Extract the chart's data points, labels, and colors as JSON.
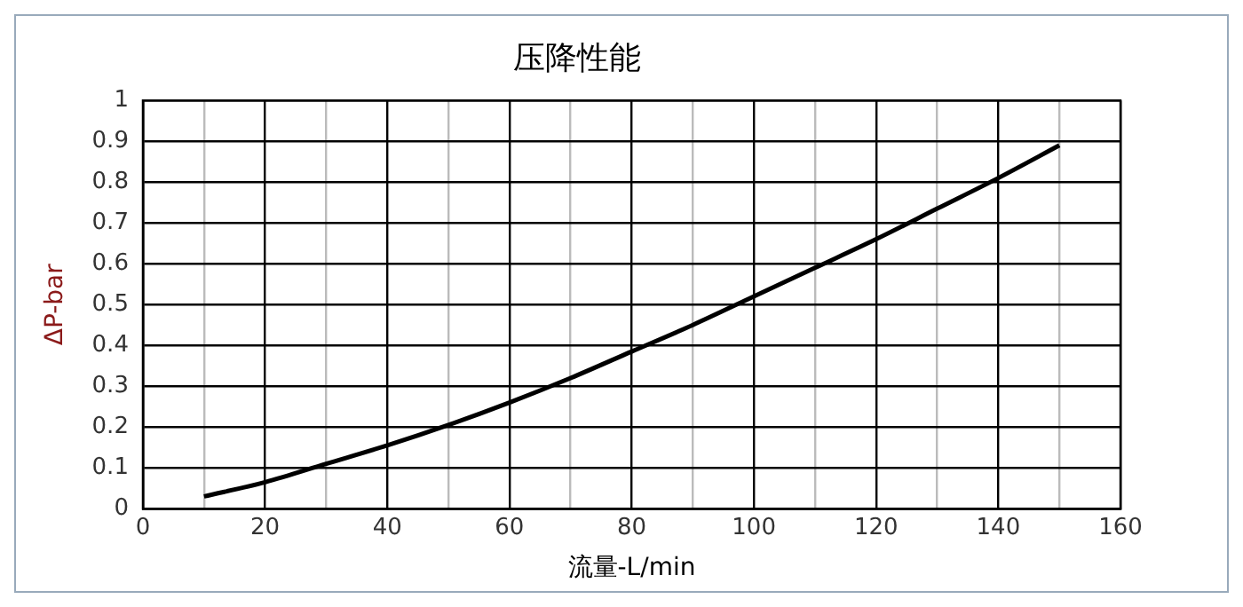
{
  "chart_data": {
    "type": "line",
    "title": "压降性能",
    "xlabel": "流量-L/min",
    "ylabel": "ΔP-bar",
    "x": [
      10,
      20,
      30,
      40,
      50,
      60,
      70,
      80,
      90,
      100,
      110,
      120,
      130,
      140,
      150
    ],
    "series": [
      {
        "color": "#000000",
        "values": [
          0.03,
          0.065,
          0.11,
          0.155,
          0.205,
          0.26,
          0.32,
          0.385,
          0.45,
          0.52,
          0.59,
          0.66,
          0.735,
          0.81,
          0.89
        ]
      }
    ],
    "xlim": [
      0,
      160
    ],
    "xticks": [
      0,
      {
        "value": 10,
        "label": null
      },
      20,
      {
        "value": 30,
        "label": null
      },
      40,
      {
        "value": 50,
        "label": null
      },
      60,
      {
        "value": 70,
        "label": null
      },
      80,
      {
        "value": 90,
        "label": null
      },
      100,
      {
        "value": 110,
        "label": null
      },
      120,
      {
        "value": 130,
        "label": null
      },
      140,
      {
        "value": 150,
        "label": null
      },
      160
    ],
    "ylim": [
      0,
      1
    ],
    "yticks": [
      0,
      0.1,
      0.2,
      0.3,
      0.4,
      0.5,
      0.6,
      0.7,
      0.8,
      0.9,
      1
    ],
    "grid": true,
    "legend": false,
    "marker": "none",
    "line_style": "solid"
  }
}
